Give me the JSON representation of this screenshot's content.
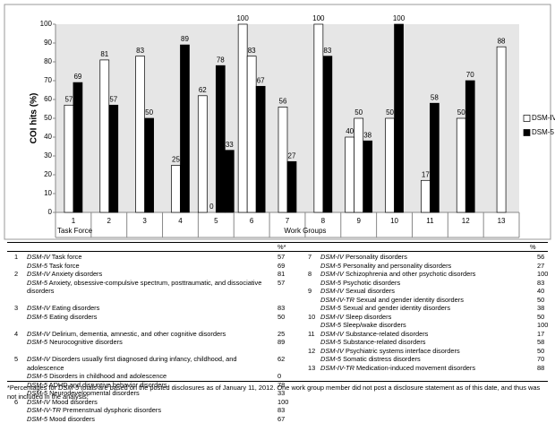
{
  "chart_data": {
    "type": "bar",
    "y_label": "COI hits (%)",
    "categories": [
      "1",
      "2",
      "3",
      "4",
      "5",
      "6",
      "7",
      "8",
      "9",
      "10",
      "11",
      "12",
      "13"
    ],
    "group_labels": [
      "Task Force",
      "Work Groups"
    ],
    "series": [
      {
        "name": "DSM-IV",
        "color": "#ffffff",
        "values": [
          [
            57
          ],
          [
            81
          ],
          [
            83
          ],
          [
            25
          ],
          [
            62,
            0
          ],
          [
            100,
            83
          ],
          [
            56
          ],
          [
            100
          ],
          [
            40,
            50
          ],
          [
            50
          ],
          [
            17
          ],
          [
            50
          ],
          [
            88
          ]
        ]
      },
      {
        "name": "DSM-5",
        "color": "#000000",
        "values": [
          [
            69
          ],
          [
            57
          ],
          [
            50
          ],
          [
            89
          ],
          [
            78,
            33
          ],
          [
            67
          ],
          [
            27
          ],
          [
            83
          ],
          [
            38
          ],
          [
            100
          ],
          [
            58
          ],
          [
            70
          ],
          []
        ]
      }
    ],
    "ylim": [
      0,
      100
    ],
    "yticks": [
      0,
      10,
      20,
      30,
      40,
      50,
      60,
      70,
      80,
      90,
      100
    ]
  },
  "table": {
    "header_left": "%*",
    "header_right": "%",
    "left": [
      {
        "num": "1",
        "items": [
          {
            "abbr": "DSM-IV",
            "text": "Task force",
            "pct": 57
          },
          {
            "abbr": "DSM-5",
            "text": "Task force",
            "pct": 69
          }
        ]
      },
      {
        "num": "2",
        "items": [
          {
            "abbr": "DSM-IV",
            "text": "Anxiety disorders",
            "pct": 81
          },
          {
            "abbr": "DSM-5",
            "text": "Anxiety, obsessive-compulsive spectrum, posttraumatic, and dissociative disorders",
            "pct": 57
          }
        ]
      },
      {
        "num": "3",
        "items": [
          {
            "abbr": "DSM-IV",
            "text": "Eating disorders",
            "pct": 83
          },
          {
            "abbr": "DSM-5",
            "text": "Eating disorders",
            "pct": 50
          }
        ]
      },
      {
        "num": "4",
        "items": [
          {
            "abbr": "DSM-IV",
            "text": "Delirium, dementia, amnestic, and other cognitive disorders",
            "pct": 25
          },
          {
            "abbr": "DSM-5",
            "text": "Neurocognitive disorders",
            "pct": 89
          }
        ]
      },
      {
        "num": "5",
        "items": [
          {
            "abbr": "DSM-IV",
            "text": "Disorders usually first diagnosed during infancy, childhood, and adolescence",
            "pct": 62
          },
          {
            "abbr": "DSM-5",
            "text": "Disorders in childhood and adolescence",
            "pct": 0
          },
          {
            "abbr": "DSM-5",
            "text": "ADHD and disruptive behavior disorders",
            "pct": 78
          },
          {
            "abbr": "DSM-5",
            "text": "Neurodevelopmental disorders",
            "pct": 33
          }
        ]
      },
      {
        "num": "6",
        "items": [
          {
            "abbr": "DSM-IV",
            "text": "Mood disorders",
            "pct": 100
          },
          {
            "abbr": "DSM-IV-TR",
            "text": "Premenstrual dysphoric disorders",
            "pct": 83
          },
          {
            "abbr": "DSM-5",
            "text": "Mood disorders",
            "pct": 67
          }
        ]
      }
    ],
    "right": [
      {
        "num": "7",
        "items": [
          {
            "abbr": "DSM-IV",
            "text": "Personality disorders",
            "pct": 56
          },
          {
            "abbr": "DSM-5",
            "text": "Personality and personality disorders",
            "pct": 27
          }
        ]
      },
      {
        "num": "8",
        "items": [
          {
            "abbr": "DSM-IV",
            "text": "Schizophrenia and other psychotic disorders",
            "pct": 100
          },
          {
            "abbr": "DSM-5",
            "text": "Psychotic disorders",
            "pct": 83
          }
        ]
      },
      {
        "num": "9",
        "items": [
          {
            "abbr": "DSM-IV",
            "text": "Sexual disorders",
            "pct": 40
          },
          {
            "abbr": "DSM-IV-TR",
            "text": "Sexual and gender identity disorders",
            "pct": 50
          },
          {
            "abbr": "DSM-5",
            "text": "Sexual and gender identity disorders",
            "pct": 38
          }
        ]
      },
      {
        "num": "10",
        "items": [
          {
            "abbr": "DSM-IV",
            "text": "Sleep disorders",
            "pct": 50
          },
          {
            "abbr": "DSM-5",
            "text": "Sleep/wake disorders",
            "pct": 100
          }
        ]
      },
      {
        "num": "11",
        "items": [
          {
            "abbr": "DSM-IV",
            "text": "Substance-related disorders",
            "pct": 17
          },
          {
            "abbr": "DSM-5",
            "text": "Substance-related disorders",
            "pct": 58
          }
        ]
      },
      {
        "num": "12",
        "items": [
          {
            "abbr": "DSM-IV",
            "text": "Psychiatric systems interface disorders",
            "pct": 50
          },
          {
            "abbr": "DSM-5",
            "text": "Somatic distress disorders",
            "pct": 70
          }
        ]
      },
      {
        "num": "13",
        "items": [
          {
            "abbr": "DSM-IV-TR",
            "text": "Medication-induced movement disorders",
            "pct": 88
          }
        ]
      }
    ]
  },
  "footnote": [
    "*Percentages  for ",
    "DSM-5",
    " totals are based on the posted disclosures as of January 11, 2012. One work group member did not post a disclosure statement as of this date, and thus was not included in the analysis."
  ]
}
